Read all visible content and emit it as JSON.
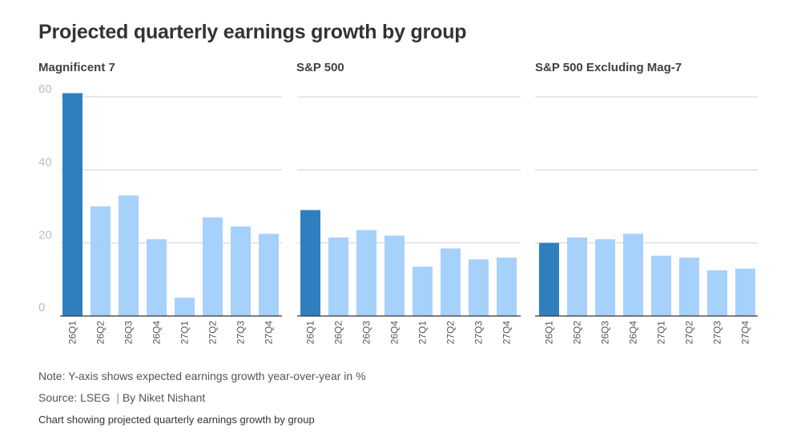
{
  "title": "Projected quarterly earnings growth by group",
  "note": "Note: Y-axis shows expected earnings growth year-over-year in %",
  "source": "Source: LSEG",
  "separator": "|",
  "byline": "By Niket Nishant",
  "caption": "Chart showing projected quarterly earnings growth by group",
  "colors": {
    "highlight": "#2f7fbf",
    "bar": "#a6d1fb"
  },
  "chart_data": [
    {
      "type": "bar",
      "title": "Magnificent 7",
      "categories": [
        "26Q1",
        "26Q2",
        "26Q3",
        "26Q4",
        "27Q1",
        "27Q2",
        "27Q3",
        "27Q4"
      ],
      "values": [
        61,
        30,
        33,
        21,
        5,
        27,
        24.5,
        22.5
      ],
      "highlight_index": 0,
      "yticks": [
        0,
        20,
        40,
        60
      ],
      "ylim": [
        0,
        62
      ],
      "grid": true
    },
    {
      "type": "bar",
      "title": "S&P 500",
      "categories": [
        "26Q1",
        "26Q2",
        "26Q3",
        "26Q4",
        "27Q1",
        "27Q2",
        "27Q3",
        "27Q4"
      ],
      "values": [
        29,
        21.5,
        23.5,
        22,
        13.5,
        18.5,
        15.5,
        16
      ],
      "highlight_index": 0,
      "yticks": [
        0,
        20,
        40,
        60
      ],
      "ylim": [
        0,
        62
      ],
      "grid": true
    },
    {
      "type": "bar",
      "title": "S&P 500 Excluding Mag-7",
      "categories": [
        "26Q1",
        "26Q2",
        "26Q3",
        "26Q4",
        "27Q1",
        "27Q2",
        "27Q3",
        "27Q4"
      ],
      "values": [
        20,
        21.5,
        21,
        22.5,
        16.5,
        16,
        12.5,
        13
      ],
      "highlight_index": 0,
      "yticks": [
        0,
        20,
        40,
        60
      ],
      "ylim": [
        0,
        62
      ],
      "grid": true
    }
  ]
}
